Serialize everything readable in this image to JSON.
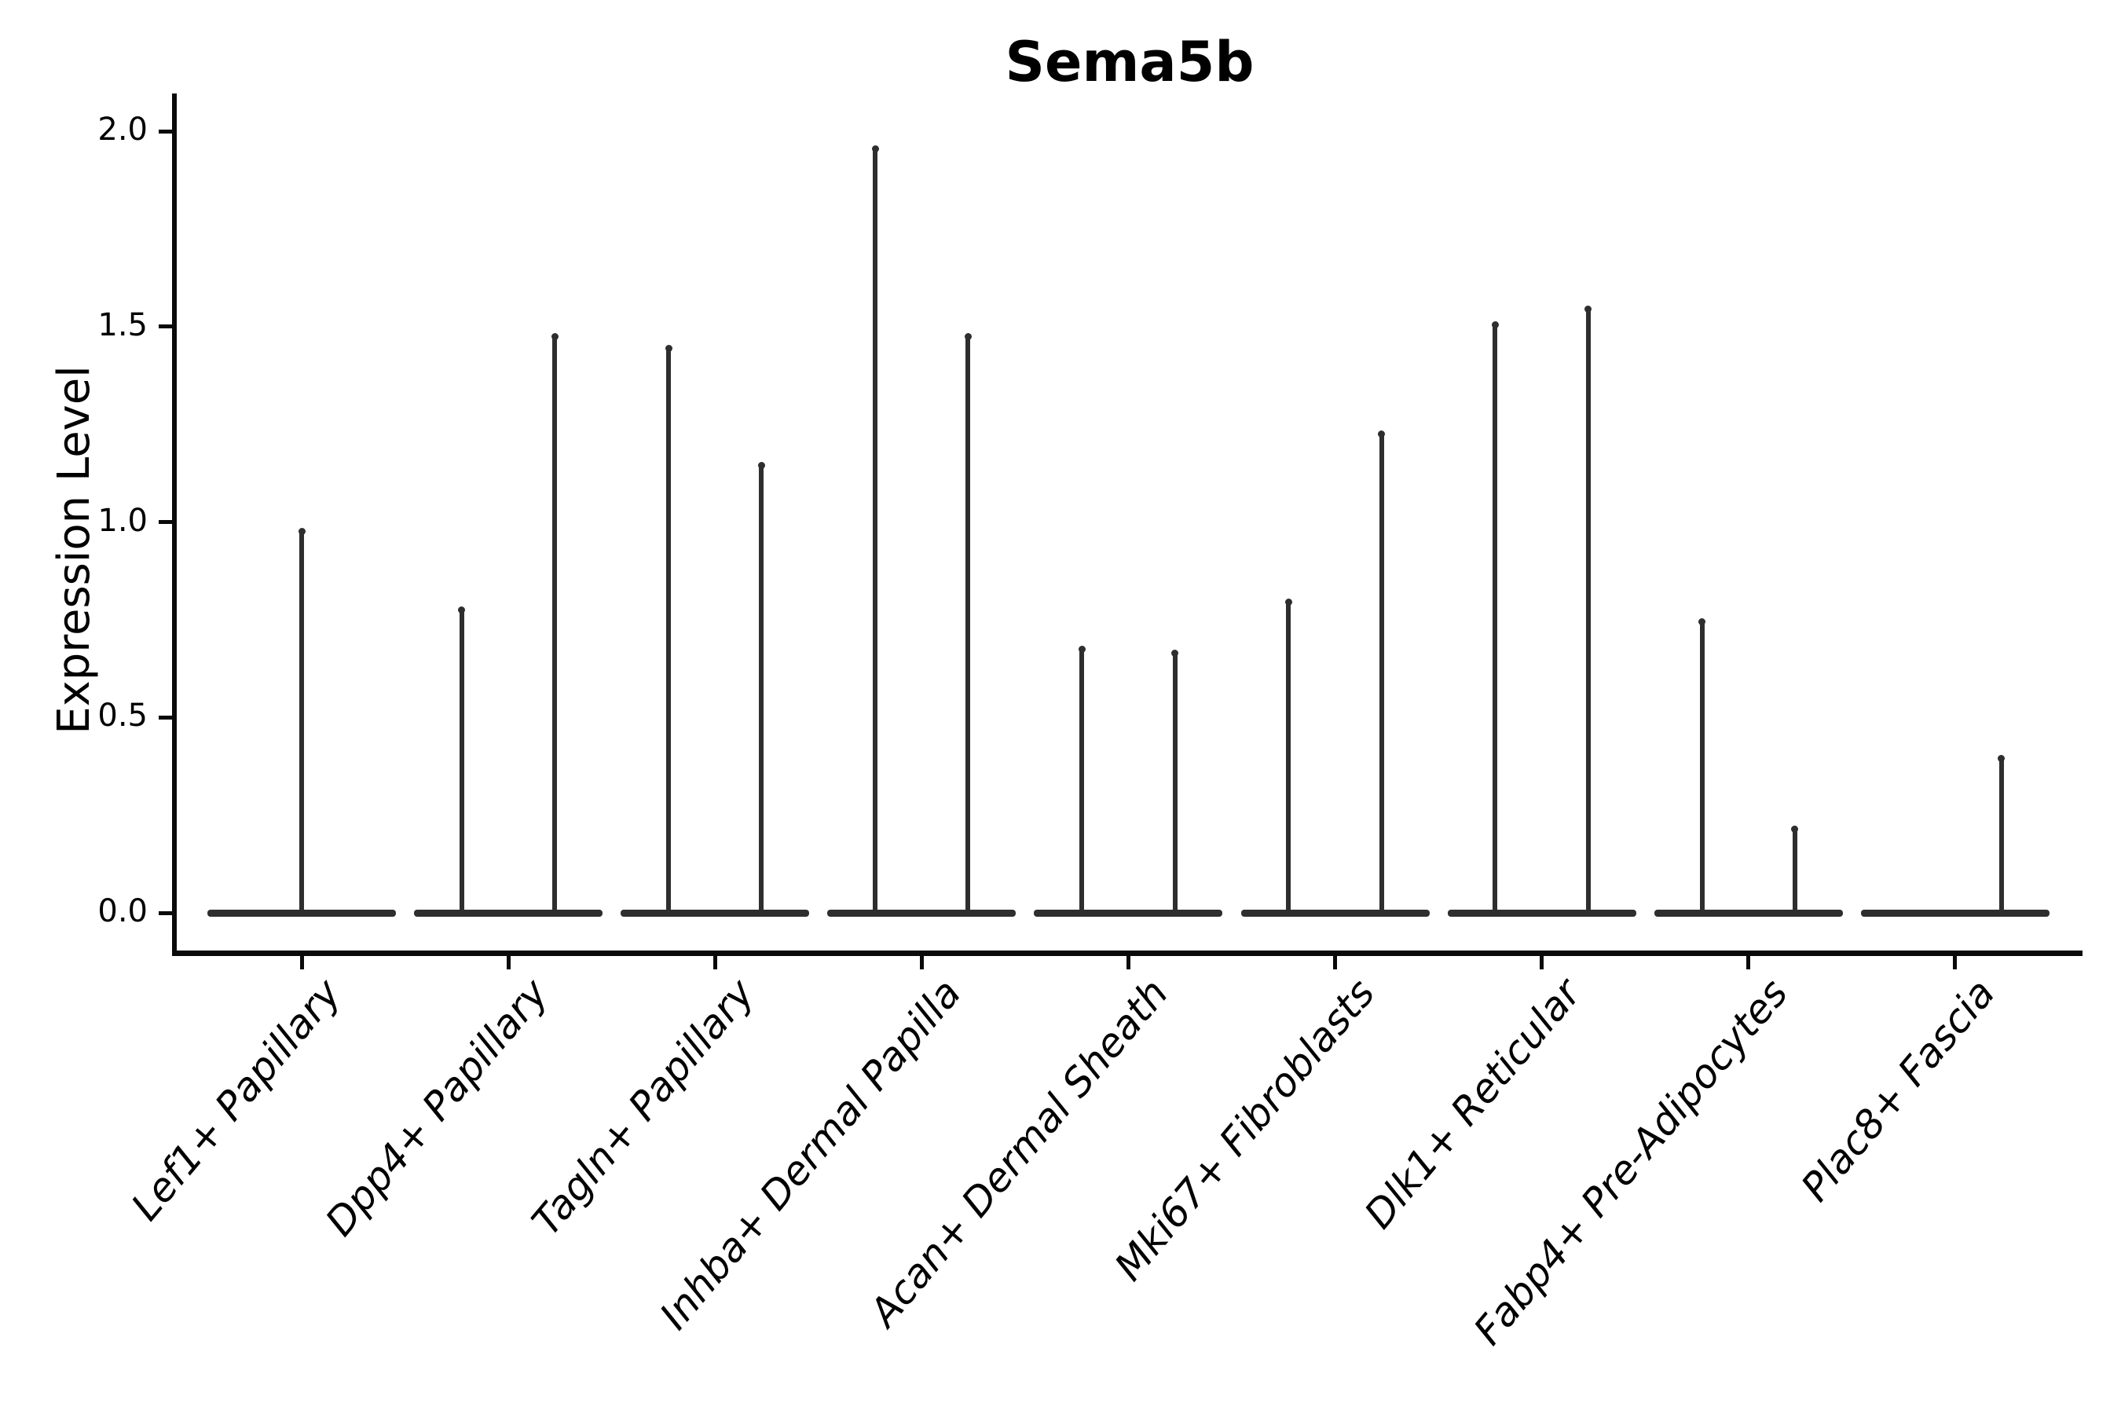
{
  "figure": {
    "title": "Sema5b",
    "ylabel": "Expression Level"
  },
  "colors": {
    "violin_line": "#2e2e2e",
    "axis_line": "#0a0a0a",
    "text": "#000000",
    "background": "#ffffff"
  },
  "chart_data": {
    "type": "violin",
    "title": "Sema5b",
    "xlabel": "",
    "ylabel": "Expression Level",
    "ylim": [
      -0.1,
      2.1
    ],
    "yticks": [
      0.0,
      0.5,
      1.0,
      1.5,
      2.0
    ],
    "ytick_labels": [
      "0.0",
      "0.5",
      "1.0",
      "1.5",
      "2.0"
    ],
    "grid": false,
    "legend": null,
    "categories": [
      "Lef1+ Papillary",
      "Dpp4+ Papillary",
      "Tagln+ Papillary",
      "Inhba+ Dermal Papilla",
      "Acan+ Dermal Sheath",
      "Mki67+ Fibroblasts",
      "Dlk1+ Reticular",
      "Fabp4+ Pre-Adipocytes",
      "Plac8+ Fascia"
    ],
    "violins": [
      {
        "category": "Lef1+ Papillary",
        "base_value": 0,
        "spikes": [
          {
            "offset": 0,
            "max": 0.98
          }
        ]
      },
      {
        "category": "Dpp4+ Papillary",
        "base_value": 0,
        "spikes": [
          {
            "offset": -0.225,
            "max": 0.78
          },
          {
            "offset": 0.225,
            "max": 1.48
          }
        ]
      },
      {
        "category": "Tagln+ Papillary",
        "base_value": 0,
        "spikes": [
          {
            "offset": -0.225,
            "max": 1.45
          },
          {
            "offset": 0.225,
            "max": 1.15
          }
        ]
      },
      {
        "category": "Inhba+ Dermal Papilla",
        "base_value": 0,
        "spikes": [
          {
            "offset": -0.225,
            "max": 1.96
          },
          {
            "offset": 0.225,
            "max": 1.48
          }
        ]
      },
      {
        "category": "Acan+ Dermal Sheath",
        "base_value": 0,
        "spikes": [
          {
            "offset": -0.225,
            "max": 0.68
          },
          {
            "offset": 0.225,
            "max": 0.67
          }
        ]
      },
      {
        "category": "Mki67+ Fibroblasts",
        "base_value": 0,
        "spikes": [
          {
            "offset": -0.225,
            "max": 0.8
          },
          {
            "offset": 0.225,
            "max": 1.23
          }
        ]
      },
      {
        "category": "Dlk1+ Reticular",
        "base_value": 0,
        "spikes": [
          {
            "offset": -0.225,
            "max": 1.51
          },
          {
            "offset": 0.225,
            "max": 1.55
          }
        ]
      },
      {
        "category": "Fabp4+ Pre-Adipocytes",
        "base_value": 0,
        "spikes": [
          {
            "offset": -0.225,
            "max": 0.75
          },
          {
            "offset": 0.225,
            "max": 0.22
          }
        ]
      },
      {
        "category": "Plac8+ Fascia",
        "base_value": 0,
        "spikes": [
          {
            "offset": 0.225,
            "max": 0.4
          }
        ]
      }
    ]
  }
}
